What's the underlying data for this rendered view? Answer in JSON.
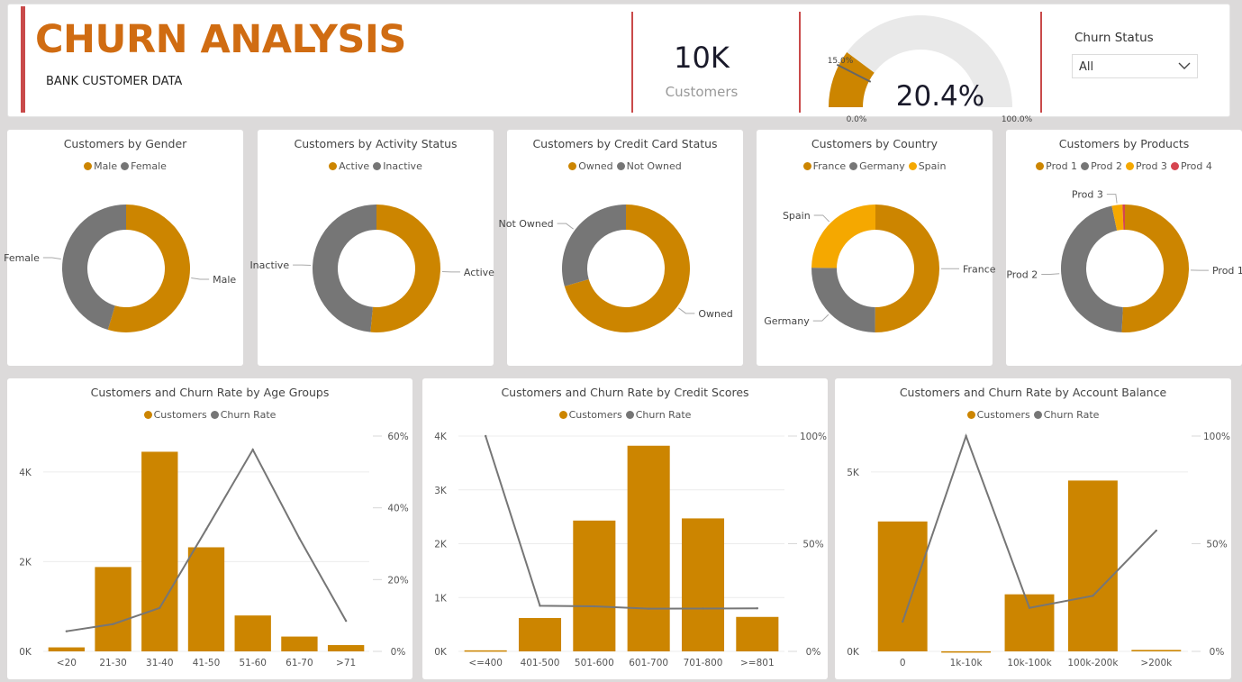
{
  "header": {
    "title": "CHURN ANALYSIS",
    "subtitle": "BANK CUSTOMER DATA",
    "kpi_value": "10K",
    "kpi_label": "Customers",
    "gauge": {
      "value_label": "20.4%",
      "value": 20.4,
      "target_label": "15.0%",
      "target": 15.0,
      "min_label": "0.0%",
      "max_label": "100.0%",
      "min": 0,
      "max": 100
    },
    "slicer": {
      "label": "Churn Status",
      "value": "All",
      "icon": "chevron-down-icon"
    }
  },
  "colors": {
    "primary": "#cc8500",
    "gray": "#767676",
    "yellow": "#f5a800",
    "red": "#d64550",
    "accent_bar": "#c94a4a",
    "title": "#d06c12"
  },
  "donuts": [
    {
      "title": "Customers by Gender",
      "legend": [
        "Male",
        "Female"
      ],
      "slices": [
        {
          "label": "Male",
          "value": 54.6,
          "color": "#cc8500"
        },
        {
          "label": "Female",
          "value": 45.4,
          "color": "#767676"
        }
      ]
    },
    {
      "title": "Customers by Activity Status",
      "legend": [
        "Active",
        "Inactive"
      ],
      "slices": [
        {
          "label": "Active",
          "value": 51.5,
          "color": "#cc8500"
        },
        {
          "label": "Inactive",
          "value": 48.5,
          "color": "#767676"
        }
      ]
    },
    {
      "title": "Customers by Credit Card Status",
      "legend": [
        "Owned",
        "Not Owned"
      ],
      "slices": [
        {
          "label": "Owned",
          "value": 70.5,
          "color": "#cc8500"
        },
        {
          "label": "Not Owned",
          "value": 29.5,
          "color": "#767676"
        }
      ]
    },
    {
      "title": "Customers by Country",
      "legend": [
        "France",
        "Germany",
        "Spain"
      ],
      "slices": [
        {
          "label": "France",
          "value": 50.1,
          "color": "#cc8500"
        },
        {
          "label": "Germany",
          "value": 25.1,
          "color": "#767676"
        },
        {
          "label": "Spain",
          "value": 24.8,
          "color": "#f5a800"
        }
      ]
    },
    {
      "title": "Customers by Products",
      "legend": [
        "Prod 1",
        "Prod 2",
        "Prod 3",
        "Prod 4"
      ],
      "slices": [
        {
          "label": "Prod 1",
          "value": 50.8,
          "color": "#cc8500"
        },
        {
          "label": "Prod 2",
          "value": 45.9,
          "color": "#767676"
        },
        {
          "label": "Prod 3",
          "value": 2.7,
          "color": "#f5a800"
        },
        {
          "label": "Prod 4",
          "value": 0.6,
          "color": "#d64550"
        }
      ]
    }
  ],
  "combo_legend": [
    "Customers",
    "Churn Rate"
  ],
  "chart_data": [
    {
      "type": "bar",
      "title": "Customers and Churn Rate by Age Groups",
      "categories": [
        "<20",
        "21-30",
        "31-40",
        "41-50",
        "51-60",
        "61-70",
        ">71"
      ],
      "series": [
        {
          "name": "Customers",
          "axis": "left",
          "values": [
            89,
            1880,
            4450,
            2320,
            800,
            330,
            140
          ]
        },
        {
          "name": "Churn Rate",
          "axis": "right",
          "type": "line",
          "values": [
            5.6,
            7.6,
            12.1,
            34.0,
            56.2,
            31.5,
            8.5
          ]
        }
      ],
      "y_left": {
        "min": 0,
        "max": 4800,
        "ticks": [
          0,
          2000,
          4000
        ],
        "tick_labels": [
          "0K",
          "2K",
          "4K"
        ]
      },
      "y_right": {
        "min": 0,
        "max": 60,
        "ticks": [
          0,
          20,
          40,
          60
        ],
        "tick_labels": [
          "0%",
          "20%",
          "40%",
          "60%"
        ]
      },
      "grid": true,
      "legend": "top-center"
    },
    {
      "type": "bar",
      "title": "Customers and Churn Rate by Credit Scores",
      "categories": [
        "<=400",
        "401-500",
        "501-600",
        "601-700",
        "701-800",
        ">=801"
      ],
      "series": [
        {
          "name": "Customers",
          "axis": "left",
          "values": [
            19,
            620,
            2430,
            3820,
            2470,
            640
          ]
        },
        {
          "name": "Churn Rate",
          "axis": "right",
          "type": "line",
          "values": [
            100,
            21.2,
            20.9,
            19.8,
            19.9,
            20.0
          ]
        }
      ],
      "y_left": {
        "min": 0,
        "max": 4000,
        "ticks": [
          0,
          1000,
          2000,
          3000,
          4000
        ],
        "tick_labels": [
          "0K",
          "1K",
          "2K",
          "3K",
          "4K"
        ]
      },
      "y_right": {
        "min": 0,
        "max": 100,
        "ticks": [
          0,
          50,
          100
        ],
        "tick_labels": [
          "0%",
          "50%",
          "100%"
        ]
      },
      "grid": true,
      "legend": "top-center"
    },
    {
      "type": "bar",
      "title": "Customers and Churn Rate by Account Balance",
      "categories": [
        "0",
        "1k-10k",
        "10k-100k",
        "100k-200k",
        ">200k"
      ],
      "series": [
        {
          "name": "Customers",
          "axis": "left",
          "values": [
            3620,
            2,
            1590,
            4760,
            40
          ]
        },
        {
          "name": "Churn Rate",
          "axis": "right",
          "type": "line",
          "values": [
            13.8,
            100,
            20.2,
            25.8,
            56.1
          ]
        }
      ],
      "y_left": {
        "min": 0,
        "max": 6000,
        "ticks": [
          0,
          5000
        ],
        "tick_labels": [
          "0K",
          "5K"
        ]
      },
      "y_right": {
        "min": 0,
        "max": 100,
        "ticks": [
          0,
          50,
          100
        ],
        "tick_labels": [
          "0%",
          "50%",
          "100%"
        ]
      },
      "grid": true,
      "legend": "top-center"
    }
  ]
}
